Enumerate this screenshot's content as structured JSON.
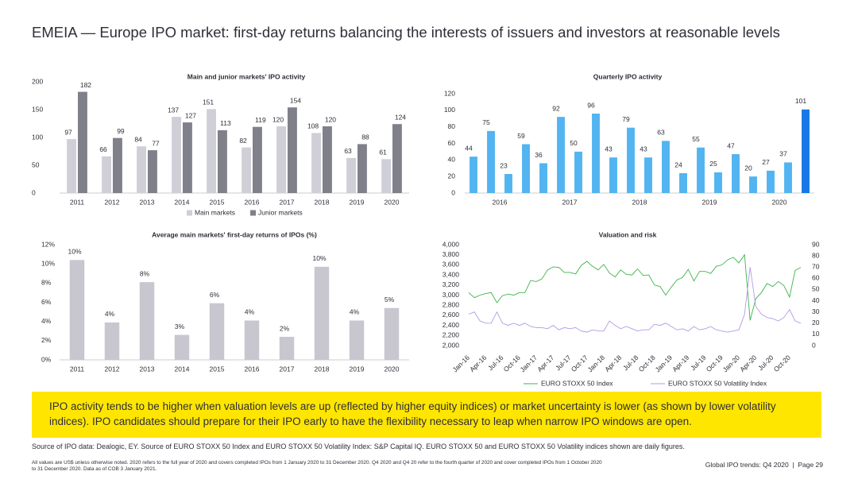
{
  "title": "EMEIA — Europe IPO market: first-day returns balancing the interests of issuers and investors at reasonable levels",
  "chart_data": [
    {
      "type": "grouped_bar",
      "title": "Main and junior markets' IPO activity",
      "categories": [
        "2011",
        "2012",
        "2013",
        "2014",
        "2015",
        "2016",
        "2017",
        "2018",
        "2019",
        "2020"
      ],
      "series": [
        {
          "name": "Main markets",
          "color": "#d0cfd8",
          "values": [
            97,
            66,
            84,
            137,
            151,
            82,
            120,
            108,
            63,
            61
          ]
        },
        {
          "name": "Junior markets",
          "color": "#80808a",
          "values": [
            182,
            99,
            77,
            127,
            113,
            119,
            154,
            120,
            88,
            124
          ]
        }
      ],
      "ylim": [
        0,
        200
      ],
      "yticks": [
        0,
        50,
        100,
        150,
        200
      ],
      "grid": false,
      "legend": "bottom"
    },
    {
      "type": "bar",
      "title": "Quarterly IPO activity",
      "categories": [
        null,
        "2016",
        null,
        null,
        null,
        "2017",
        null,
        null,
        null,
        "2018",
        null,
        null,
        null,
        "2019",
        null,
        null,
        null,
        "2020",
        null,
        null
      ],
      "values": [
        44,
        75,
        23,
        59,
        36,
        92,
        50,
        96,
        43,
        79,
        43,
        63,
        24,
        55,
        25,
        47,
        20,
        27,
        37,
        101
      ],
      "colors": [
        "#52b4f0",
        "#52b4f0",
        "#52b4f0",
        "#52b4f0",
        "#52b4f0",
        "#52b4f0",
        "#52b4f0",
        "#52b4f0",
        "#52b4f0",
        "#52b4f0",
        "#52b4f0",
        "#52b4f0",
        "#52b4f0",
        "#52b4f0",
        "#52b4f0",
        "#52b4f0",
        "#52b4f0",
        "#52b4f0",
        "#52b4f0",
        "#1777e6"
      ],
      "ylim": [
        0,
        120
      ],
      "yticks": [
        0,
        20,
        40,
        60,
        80,
        100,
        120
      ],
      "grid": false
    },
    {
      "type": "bar",
      "title": "Average main markets' first-day returns of IPOs (%)",
      "categories": [
        "2011",
        "2012",
        "2013",
        "2014",
        "2015",
        "2016",
        "2017",
        "2018",
        "2019",
        "2020"
      ],
      "values": [
        10.4,
        3.9,
        8.1,
        2.6,
        5.9,
        4.1,
        2.4,
        9.7,
        4.1,
        5.4
      ],
      "value_labels": [
        "10%",
        "4%",
        "8%",
        "3%",
        "6%",
        "4%",
        "2%",
        "10%",
        "4%",
        "5%"
      ],
      "colors": [
        "#c8c7d0",
        "#c8c7d0",
        "#c8c7d0",
        "#c8c7d0",
        "#c8c7d0",
        "#c8c7d0",
        "#c8c7d0",
        "#c8c7d0",
        "#c8c7d0",
        "#c8c7d0"
      ],
      "ylim": [
        0,
        12
      ],
      "yticks": [
        {
          "value": 0,
          "label": "0%"
        },
        {
          "value": 2,
          "label": "2%"
        },
        {
          "value": 4,
          "label": "4%"
        },
        {
          "value": 6,
          "label": "6%"
        },
        {
          "value": 8,
          "label": "8%"
        },
        {
          "value": 10,
          "label": "10%"
        },
        {
          "value": 12,
          "label": "12%"
        }
      ],
      "grid": false
    },
    {
      "type": "line",
      "title": "Valuation and risk",
      "categories": [
        "Jan-16",
        null,
        null,
        "Apr-16",
        null,
        null,
        "Jul-16",
        null,
        null,
        "Oct-16",
        null,
        null,
        "Jan-17",
        null,
        null,
        "Apr-17",
        null,
        null,
        "Jul-17",
        null,
        null,
        "Oct-17",
        null,
        null,
        "Jan-18",
        null,
        null,
        "Apr-18",
        null,
        null,
        "Jul-18",
        null,
        null,
        "Oct-18",
        null,
        null,
        "Jan-19",
        null,
        null,
        "Apr-19",
        null,
        null,
        "Jul-19",
        null,
        null,
        "Oct-19",
        null,
        null,
        "Jan-20",
        null,
        null,
        "Apr-20",
        null,
        null,
        "Jul-20",
        null,
        null,
        "Oct-20",
        null,
        null
      ],
      "series": [
        {
          "name": "EURO STOXX 50 Index",
          "color": "#3cb44b",
          "values": [
            3050,
            2950,
            3000,
            3030,
            3050,
            2850,
            2990,
            3020,
            3000,
            3050,
            3050,
            3290,
            3270,
            3320,
            3500,
            3560,
            3550,
            3450,
            3450,
            3420,
            3590,
            3670,
            3570,
            3500,
            3610,
            3440,
            3360,
            3500,
            3410,
            3400,
            3520,
            3390,
            3400,
            3200,
            3170,
            3000,
            3160,
            3300,
            3350,
            3510,
            3280,
            3470,
            3470,
            3430,
            3570,
            3600,
            3700,
            3750,
            3640,
            3800,
            2500,
            2930,
            3050,
            3230,
            3170,
            3270,
            3190,
            2960,
            3490,
            3550
          ]
        },
        {
          "name": "EURO STOXX 50 Volatility Index",
          "color": "#b39ae6",
          "axis": "y2",
          "values": [
            28,
            30,
            22,
            20,
            20,
            30,
            20,
            18,
            20,
            18,
            20,
            17,
            16,
            16,
            15,
            18,
            14,
            16,
            15,
            16,
            13,
            12,
            14,
            13,
            13,
            22,
            18,
            15,
            17,
            15,
            13,
            14,
            14,
            19,
            18,
            20,
            17,
            14,
            15,
            13,
            17,
            14,
            15,
            17,
            14,
            13,
            12,
            13,
            14,
            28,
            70,
            35,
            28,
            25,
            24,
            22,
            25,
            32,
            22,
            20
          ]
        }
      ],
      "ylim": [
        2000,
        4000
      ],
      "yticks": [
        {
          "value": 2000,
          "label": "2,000"
        },
        {
          "value": 2200,
          "label": "2,200"
        },
        {
          "value": 2400,
          "label": "2,400"
        },
        {
          "value": 2600,
          "label": "2,600"
        },
        {
          "value": 2800,
          "label": "2,800"
        },
        {
          "value": 3000,
          "label": "3,000"
        },
        {
          "value": 3200,
          "label": "3,200"
        },
        {
          "value": 3400,
          "label": "3,400"
        },
        {
          "value": 3600,
          "label": "3,600"
        },
        {
          "value": 3800,
          "label": "3,800"
        },
        {
          "value": 4000,
          "label": "4,000"
        }
      ],
      "y2lim": [
        0,
        90
      ],
      "y2ticks": [
        0,
        10,
        20,
        30,
        40,
        50,
        60,
        70,
        80,
        90
      ],
      "grid": false,
      "legend": "bottom"
    }
  ],
  "callout": "IPO activity tends to be higher when valuation levels are up (reflected by higher equity indices) or market uncertainty is lower (as shown by lower volatility indices). IPO candidates should prepare for their IPO early to have the flexibility necessary to leap when narrow IPO windows are open.",
  "source": "Source of IPO data: Dealogic, EY. Source of EURO STOXX 50 Index and EURO STOXX 50 Volatility Index: S&P Capital IQ. EURO STOXX 50 and EURO STOXX 50 Volatility indices shown are daily figures.",
  "footnote": "All values are US$ unless otherwise noted. 2020 refers to the full year of 2020 and covers completed IPOs from 1 January 2020 to 31 December 2020. Q4 2020 and Q4 20 refer to the fourth quarter of 2020 and cover completed IPOs from 1 October 2020 to 31 December 2020. Data as of COB 3 January 2021.",
  "footer": "Global IPO trends: Q4 2020  |  Page 29"
}
